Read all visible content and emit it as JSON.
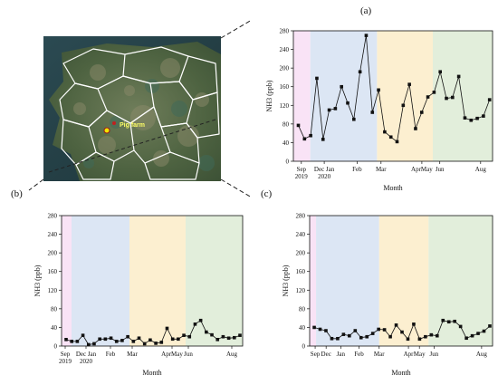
{
  "panels": {
    "a": "(a)",
    "b": "(b)",
    "c": "(c)"
  },
  "map": {
    "marker_label": "Pig farm",
    "colors": {
      "boundary": "#ffffff",
      "marker": "#f2e600",
      "marker_stroke": "#9b1a1a"
    }
  },
  "colors": {
    "pink": "#f9e3f6",
    "blue": "#dce6f4",
    "yellow": "#fcefd0",
    "green": "#e2eedb",
    "line": "#111111"
  },
  "chart_data": [
    {
      "id": "a",
      "type": "line",
      "ylabel": "NH3 (ppb)",
      "xlabel": "Month",
      "ylim": [
        0,
        280
      ],
      "yticks": [
        0,
        40,
        80,
        120,
        160,
        200,
        240,
        280
      ],
      "xticklabels": [
        "Sep\n2019",
        "Dec Jan\n2020",
        "Feb",
        "Mar",
        "Apr",
        "May",
        "Jun",
        "Aug"
      ],
      "season_bands": [
        "pink",
        "blue",
        "yellow",
        "green"
      ],
      "values": [
        77,
        48,
        55,
        178,
        47,
        110,
        113,
        160,
        125,
        90,
        192,
        270,
        105,
        153,
        63,
        52,
        42,
        120,
        165,
        70,
        105,
        138,
        148,
        192,
        135,
        137,
        182,
        93,
        88,
        92,
        97,
        132
      ],
      "marker": "square"
    },
    {
      "id": "b",
      "type": "line",
      "ylabel": "NH3 (ppb)",
      "xlabel": "Month",
      "ylim": [
        0,
        280
      ],
      "yticks": [
        0,
        40,
        80,
        120,
        160,
        200,
        240,
        280
      ],
      "xticklabels": [
        "Sep\n2019",
        "Dec Jan\n2020",
        "Feb",
        "Mar",
        "Apr",
        "May",
        "Jun",
        "Aug"
      ],
      "season_bands": [
        "pink",
        "blue",
        "yellow",
        "green"
      ],
      "values": [
        14,
        10,
        10,
        23,
        3,
        5,
        15,
        15,
        17,
        10,
        12,
        20,
        10,
        17,
        5,
        13,
        6,
        8,
        38,
        15,
        15,
        23,
        20,
        47,
        55,
        30,
        24,
        14,
        20,
        17,
        18,
        23
      ],
      "marker": "square"
    },
    {
      "id": "c",
      "type": "line",
      "ylabel": "NH3 (ppb)",
      "xlabel": "Month",
      "ylim": [
        0,
        280
      ],
      "yticks": [
        0,
        40,
        80,
        120,
        160,
        200,
        240,
        280
      ],
      "xticklabels": [
        "Sep",
        "Dec",
        "Jan",
        "Feb",
        "Mar",
        "Apr",
        "May",
        "Jun",
        "Aug"
      ],
      "season_bands": [
        "pink",
        "blue",
        "yellow",
        "green"
      ],
      "values": [
        40,
        36,
        33,
        16,
        16,
        25,
        22,
        33,
        18,
        20,
        27,
        36,
        35,
        20,
        45,
        30,
        15,
        47,
        15,
        20,
        24,
        22,
        55,
        52,
        53,
        42,
        17,
        22,
        27,
        32,
        43
      ],
      "marker": "square"
    }
  ]
}
